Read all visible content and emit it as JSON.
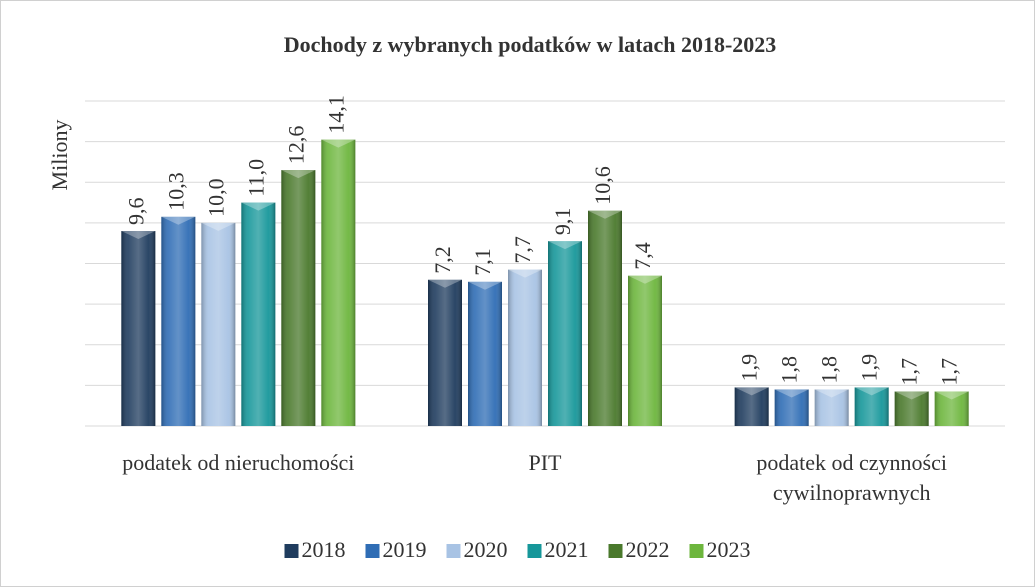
{
  "chart_data": {
    "type": "bar",
    "title": "Dochody z wybranych  podatków w latach 2018-2023",
    "y_label": "Miliony",
    "categories": [
      "podatek od nieruchomości",
      "PIT",
      "podatek od czynności cywilnoprawnych"
    ],
    "series": [
      {
        "name": "2018",
        "color": "#1f3c5e",
        "values": [
          9.6,
          7.2,
          1.9
        ],
        "value_labels": [
          "9,6",
          "7,2",
          "1,9"
        ]
      },
      {
        "name": "2019",
        "color": "#2f6db5",
        "values": [
          10.3,
          7.1,
          1.8
        ],
        "value_labels": [
          "10,3",
          "7,1",
          "1,8"
        ]
      },
      {
        "name": "2020",
        "color": "#a8c3e4",
        "values": [
          10.0,
          7.7,
          1.8
        ],
        "value_labels": [
          "10,0",
          "7,7",
          "1,8"
        ]
      },
      {
        "name": "2021",
        "color": "#16979a",
        "values": [
          11.0,
          9.1,
          1.9
        ],
        "value_labels": [
          "11,0",
          "9,1",
          "1,9"
        ]
      },
      {
        "name": "2022",
        "color": "#4a792c",
        "values": [
          12.6,
          10.6,
          1.7
        ],
        "value_labels": [
          "12,6",
          "10,6",
          "1,7"
        ]
      },
      {
        "name": "2023",
        "color": "#6db63d",
        "values": [
          14.1,
          7.4,
          1.7
        ],
        "value_labels": [
          "14,1",
          "7,4",
          "1,7"
        ]
      }
    ],
    "ylim": [
      0,
      16
    ],
    "yticks": [
      0,
      2,
      4,
      6,
      8,
      10,
      12,
      14,
      16
    ],
    "grid": true,
    "legend": "bottom"
  }
}
